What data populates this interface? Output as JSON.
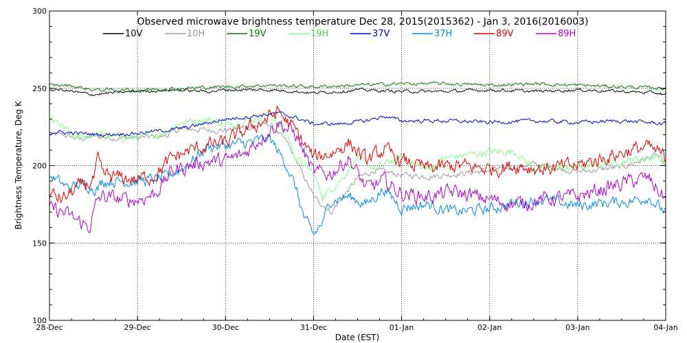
{
  "chart_data": {
    "type": "line",
    "title": "Observed microwave brightness temperature Dec 28, 2015(2015362) - Jan  3, 2016(2016003)",
    "xlabel": "Date (EST)",
    "ylabel": "Brightness Temperature, Deg K",
    "xlim": [
      0,
      7
    ],
    "ylim": [
      100,
      300
    ],
    "x_ticks": [
      0,
      1,
      2,
      3,
      4,
      5,
      6,
      7
    ],
    "x_tick_labels": [
      "28-Dec",
      "29-Dec",
      "30-Dec",
      "31-Dec",
      "01-Jan",
      "02-Jan",
      "03-Jan",
      "04-Jan"
    ],
    "y_ticks": [
      100,
      150,
      200,
      250,
      300
    ],
    "y_tick_labels": [
      "100",
      "150",
      "200",
      "250",
      "300"
    ],
    "grid": {
      "x": true,
      "y": [
        150,
        200,
        250
      ],
      "style": "dotted"
    },
    "legend_placement": "top",
    "series": [
      {
        "name": "10V",
        "color": "#000000",
        "noise": 0.8,
        "x": [
          0.0,
          0.15,
          0.35,
          0.5,
          0.7,
          1.0,
          1.4,
          1.8,
          2.0,
          2.3,
          2.5,
          2.8,
          3.0,
          3.3,
          3.5,
          4.0,
          4.5,
          5.0,
          5.5,
          6.0,
          6.5,
          6.9,
          7.0
        ],
        "y": [
          249,
          249,
          247,
          246,
          247,
          248,
          249,
          248,
          249,
          249,
          249,
          248,
          247,
          248,
          249,
          248,
          248,
          249,
          248,
          249,
          248,
          247,
          246
        ]
      },
      {
        "name": "10H",
        "color": "#999999",
        "noise": 1.5,
        "x": [
          0.0,
          0.15,
          0.35,
          0.5,
          0.7,
          1.0,
          1.3,
          1.5,
          1.8,
          2.0,
          2.3,
          2.5,
          2.7,
          2.9,
          3.0,
          3.2,
          3.5,
          3.7,
          4.0,
          4.3,
          4.7,
          5.0,
          5.5,
          6.0,
          6.5,
          6.9,
          7.0
        ],
        "y": [
          220,
          220,
          217,
          219,
          218,
          218,
          219,
          224,
          223,
          223,
          225,
          227,
          215,
          192,
          180,
          170,
          192,
          197,
          194,
          193,
          195,
          197,
          201,
          196,
          199,
          207,
          200
        ]
      },
      {
        "name": "19V",
        "color": "#008000",
        "noise": 0.9,
        "x": [
          0.0,
          0.2,
          0.4,
          0.5,
          0.7,
          1.0,
          1.5,
          2.0,
          2.5,
          3.0,
          3.5,
          4.0,
          4.5,
          5.0,
          5.5,
          6.0,
          6.5,
          7.0
        ],
        "y": [
          252,
          252,
          250,
          249,
          249,
          249,
          250,
          251,
          252,
          251,
          252,
          253,
          253,
          252,
          253,
          252,
          251,
          250
        ]
      },
      {
        "name": "19H",
        "color": "#80ff80",
        "noise": 2.0,
        "x": [
          0.0,
          0.15,
          0.3,
          0.5,
          0.7,
          1.0,
          1.3,
          1.5,
          1.8,
          2.0,
          2.3,
          2.5,
          2.7,
          2.8,
          3.0,
          3.1,
          3.3,
          3.5,
          3.7,
          4.0,
          4.3,
          4.5,
          5.0,
          5.3,
          5.5,
          6.0,
          6.5,
          6.9,
          7.0
        ],
        "y": [
          230,
          225,
          218,
          220,
          219,
          218,
          221,
          228,
          230,
          227,
          230,
          234,
          220,
          205,
          195,
          180,
          190,
          205,
          198,
          206,
          197,
          205,
          209,
          209,
          198,
          199,
          203,
          206,
          202
        ]
      },
      {
        "name": "37V",
        "color": "#0000cc",
        "noise": 1.0,
        "x": [
          0.0,
          0.3,
          0.6,
          1.0,
          1.5,
          2.0,
          2.3,
          2.6,
          2.8,
          3.0,
          3.3,
          3.6,
          3.8,
          4.0,
          4.5,
          5.0,
          5.5,
          6.0,
          6.5,
          6.8,
          7.0
        ],
        "y": [
          222,
          221,
          220,
          221,
          224,
          230,
          232,
          234,
          231,
          227,
          227,
          229,
          232,
          229,
          229,
          228,
          229,
          228,
          229,
          228,
          227
        ]
      },
      {
        "name": "37H",
        "color": "#0088dd",
        "noise": 3.0,
        "x": [
          0.0,
          0.2,
          0.4,
          0.55,
          0.6,
          0.8,
          1.0,
          1.3,
          1.5,
          1.8,
          2.0,
          2.3,
          2.5,
          2.7,
          2.8,
          2.9,
          3.0,
          3.1,
          3.2,
          3.4,
          3.6,
          3.8,
          4.0,
          4.3,
          4.6,
          5.0,
          5.3,
          5.6,
          6.0,
          6.3,
          6.6,
          6.8,
          6.95,
          7.0
        ],
        "y": [
          194,
          186,
          188,
          185,
          190,
          190,
          190,
          192,
          198,
          212,
          213,
          215,
          218,
          200,
          185,
          165,
          155,
          163,
          178,
          180,
          175,
          185,
          173,
          175,
          170,
          172,
          176,
          178,
          174,
          176,
          177,
          180,
          172,
          170
        ]
      },
      {
        "name": "89V",
        "color": "#dd0000",
        "noise": 4.0,
        "x": [
          0.0,
          0.15,
          0.3,
          0.5,
          0.55,
          0.6,
          0.8,
          1.0,
          1.2,
          1.4,
          1.6,
          1.8,
          2.0,
          2.2,
          2.4,
          2.6,
          2.8,
          3.0,
          3.2,
          3.4,
          3.6,
          3.8,
          4.0,
          4.3,
          4.6,
          5.0,
          5.3,
          5.6,
          6.0,
          6.3,
          6.6,
          6.8,
          7.0
        ],
        "y": [
          182,
          178,
          185,
          190,
          203,
          194,
          192,
          191,
          194,
          205,
          210,
          213,
          215,
          222,
          228,
          235,
          222,
          205,
          208,
          215,
          203,
          210,
          203,
          198,
          200,
          198,
          200,
          198,
          200,
          205,
          210,
          212,
          205
        ]
      },
      {
        "name": "89H",
        "color": "#aa00cc",
        "noise": 4.0,
        "x": [
          0.0,
          0.15,
          0.3,
          0.45,
          0.55,
          0.6,
          0.8,
          1.0,
          1.2,
          1.4,
          1.6,
          1.8,
          2.0,
          2.2,
          2.4,
          2.6,
          2.8,
          3.0,
          3.2,
          3.4,
          3.6,
          3.8,
          4.0,
          4.3,
          4.6,
          5.0,
          5.3,
          5.6,
          6.0,
          6.3,
          6.6,
          6.8,
          7.0
        ],
        "y": [
          172,
          170,
          165,
          160,
          178,
          180,
          178,
          178,
          182,
          197,
          200,
          203,
          203,
          207,
          218,
          228,
          220,
          195,
          195,
          205,
          185,
          190,
          182,
          180,
          183,
          178,
          175,
          178,
          180,
          185,
          190,
          192,
          178
        ]
      }
    ]
  }
}
